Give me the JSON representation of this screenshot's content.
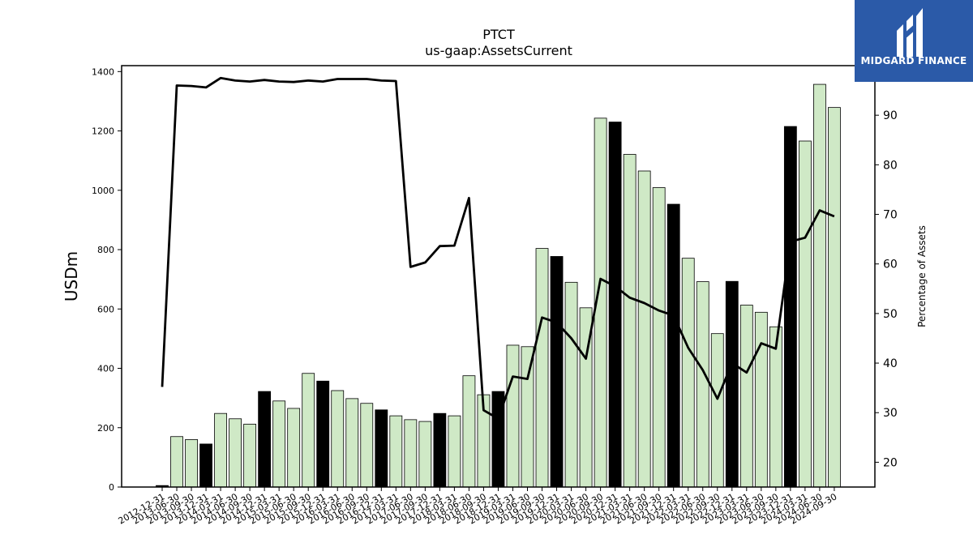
{
  "chart_data": {
    "type": "bar",
    "title": "PTCT",
    "subtitle": "us-gaap:AssetsCurrent",
    "ylabel": "USDm",
    "y2label": "Percentage of Assets",
    "ylim": [
      0,
      1420
    ],
    "y2lim": [
      15,
      100
    ],
    "yticks": [
      0,
      200,
      400,
      600,
      800,
      1000,
      1200,
      1400
    ],
    "y2ticks": [
      20,
      30,
      40,
      50,
      60,
      70,
      80,
      90
    ],
    "grid": false,
    "categories": [
      "2012-12-31",
      "2013-06-30",
      "2013-09-30",
      "2013-12-31",
      "2014-03-31",
      "2014-06-30",
      "2014-09-30",
      "2014-12-31",
      "2015-03-31",
      "2015-06-30",
      "2015-09-30",
      "2015-12-31",
      "2016-03-31",
      "2016-06-30",
      "2016-09-30",
      "2016-12-31",
      "2017-03-31",
      "2017-06-30",
      "2017-09-30",
      "2017-12-31",
      "2018-03-31",
      "2018-06-30",
      "2018-09-30",
      "2018-12-31",
      "2019-03-31",
      "2019-06-30",
      "2019-09-30",
      "2019-12-31",
      "2020-03-31",
      "2020-06-30",
      "2020-09-30",
      "2020-12-31",
      "2021-03-31",
      "2021-06-30",
      "2021-09-30",
      "2021-12-31",
      "2022-03-31",
      "2022-06-30",
      "2022-09-30",
      "2022-12-31",
      "2023-03-31",
      "2023-06-30",
      "2023-09-30",
      "2023-12-31",
      "2024-03-31",
      "2024-06-30",
      "2024-09-30"
    ],
    "series": [
      {
        "kind": "bar",
        "axis": "left",
        "values": [
          5,
          170,
          160,
          145,
          248,
          230,
          212,
          322,
          290,
          265,
          383,
          357,
          325,
          298,
          282,
          260,
          240,
          227,
          221,
          248,
          240,
          375,
          311,
          322,
          478,
          473,
          804,
          777,
          690,
          604,
          1243,
          1230,
          1121,
          1065,
          1009,
          953,
          771,
          692,
          517,
          693,
          613,
          589,
          540,
          1215,
          1166,
          1357,
          1279
        ],
        "highlight": [
          true,
          false,
          false,
          true,
          false,
          false,
          false,
          true,
          false,
          false,
          false,
          true,
          false,
          false,
          false,
          true,
          false,
          false,
          false,
          true,
          false,
          false,
          false,
          true,
          false,
          false,
          false,
          true,
          false,
          false,
          false,
          true,
          false,
          false,
          false,
          true,
          false,
          false,
          false,
          true,
          false,
          false,
          false,
          true,
          false,
          false,
          false
        ],
        "color": "#cfe9c6",
        "highlight_color": "#000000"
      },
      {
        "kind": "line",
        "axis": "right",
        "values": [
          35.2,
          96.0,
          95.9,
          95.6,
          97.5,
          97.0,
          96.8,
          97.1,
          96.8,
          96.7,
          97.0,
          96.8,
          97.3,
          97.3,
          97.3,
          97.0,
          96.9,
          59.4,
          60.3,
          63.6,
          63.7,
          73.3,
          30.5,
          28.8,
          37.3,
          36.8,
          49.2,
          48.2,
          45.0,
          40.9,
          57.0,
          55.5,
          53.2,
          52.1,
          50.6,
          49.6,
          43.1,
          38.6,
          32.8,
          40.0,
          38.1,
          44.0,
          42.9,
          64.5,
          65.3,
          70.8,
          69.6
        ],
        "color": "#000000"
      }
    ]
  },
  "branding": {
    "name": "MIDGARD FINANCE",
    "background": "#2b5aa8"
  }
}
